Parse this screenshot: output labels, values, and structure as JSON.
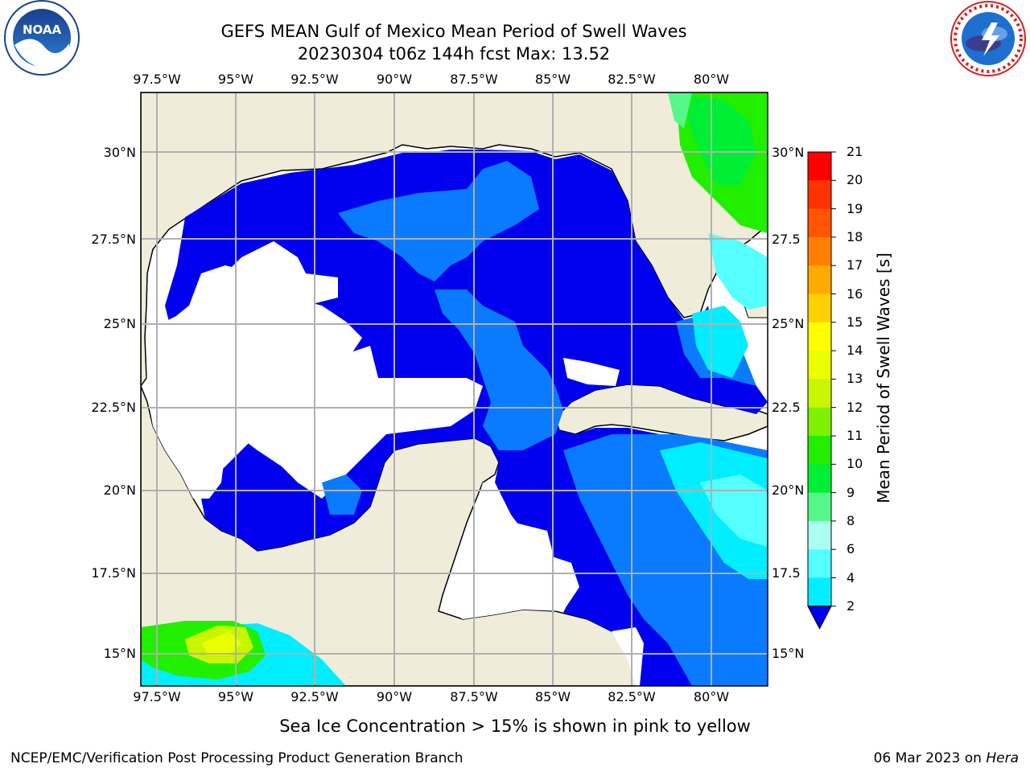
{
  "title": {
    "line1": "GEFS MEAN Gulf of Mexico Mean Period of Swell Waves",
    "line2": "20230304 t06z 144h fcst   Max: 13.52"
  },
  "map": {
    "lon_labels": [
      "97.5°W",
      "95°W",
      "92.5°W",
      "90°W",
      "87.5°W",
      "85°W",
      "82.5°W",
      "80°W"
    ],
    "lat_labels_left": [
      "30°N",
      "27.5°N",
      "25°N",
      "22.5°N",
      "20°N",
      "17.5°N",
      "15°N"
    ],
    "lat_labels_right": [
      "30°N",
      "27.5",
      "25°N",
      "22.5",
      "20°N",
      "17.5",
      "15°N"
    ],
    "colors": {
      "land": "#efedda",
      "open_water": "#ffffff",
      "grid": "#b0b0b0",
      "coast": "#000000"
    }
  },
  "colorbar": {
    "label": "Mean Period of Swell Waves [s]",
    "ticks": [
      "21",
      "20",
      "19",
      "18",
      "17",
      "16",
      "15",
      "14",
      "13",
      "12",
      "11",
      "10",
      "9",
      "8",
      "6",
      "4",
      "2"
    ],
    "colors": [
      "#ff0000",
      "#ff3300",
      "#ff5500",
      "#ff8000",
      "#ffaa00",
      "#ffd000",
      "#ffff00",
      "#eaff00",
      "#c8f500",
      "#7ef000",
      "#22ee00",
      "#00ee33",
      "#55f78a",
      "#aaffee",
      "#55ffff",
      "#00eeff",
      "#0077ff"
    ],
    "extend_color": "#0000ee"
  },
  "footer": {
    "sea_ice_note": "Sea Ice Concentration > 15% is shown in pink to yellow",
    "credit": "NCEP/EMC/Verification Post Processing Product Generation Branch",
    "date": "06 Mar 2023 on",
    "host": "Hera"
  },
  "logos": {
    "noaa": "NOAA",
    "nws": "NATIONAL WEATHER SERVICE"
  }
}
